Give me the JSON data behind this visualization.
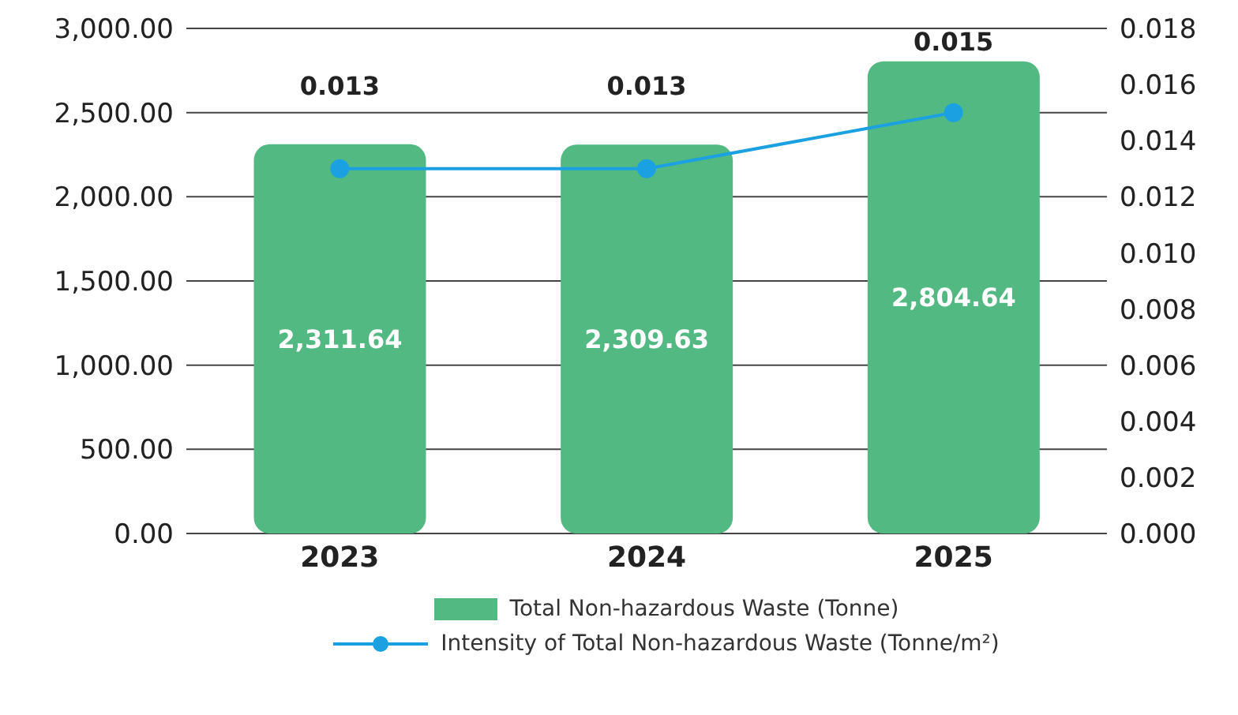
{
  "chart_data": {
    "type": "bar",
    "categories": [
      "2023",
      "2024",
      "2025"
    ],
    "series": [
      {
        "name": "Total Non-hazardous Waste (Tonne)",
        "color": "#52b983",
        "values": [
          2311.64,
          2309.63,
          2804.64
        ],
        "value_labels": [
          "2,311.64",
          "2,309.63",
          "2,804.64"
        ]
      },
      {
        "name": "Intensity of Total Non-hazardous Waste (Tonne/m²)",
        "type": "line",
        "axis": "y2",
        "color": "#1ba1e2",
        "values": [
          0.013,
          0.013,
          0.015
        ],
        "value_labels": [
          "0.013",
          "0.013",
          "0.015"
        ]
      }
    ],
    "ylim": [
      0,
      3000
    ],
    "yticks": [
      {
        "value": 0,
        "label": "0.00"
      },
      {
        "value": 500,
        "label": "500.00"
      },
      {
        "value": 1000,
        "label": "1,000.00"
      },
      {
        "value": 1500,
        "label": "1,500.00"
      },
      {
        "value": 2000,
        "label": "2,000.00"
      },
      {
        "value": 2500,
        "label": "2,500.00"
      },
      {
        "value": 3000,
        "label": "3,000.00"
      }
    ],
    "y2lim": [
      0,
      0.018
    ],
    "y2ticks": [
      {
        "value": 0,
        "label": "0.000"
      },
      {
        "value": 0.002,
        "label": "0.002"
      },
      {
        "value": 0.004,
        "label": "0.004"
      },
      {
        "value": 0.006,
        "label": "0.006"
      },
      {
        "value": 0.008,
        "label": "0.008"
      },
      {
        "value": 0.01,
        "label": "0.010"
      },
      {
        "value": 0.012,
        "label": "0.012"
      },
      {
        "value": 0.014,
        "label": "0.014"
      },
      {
        "value": 0.016,
        "label": "0.016"
      },
      {
        "value": 0.018,
        "label": "0.018"
      }
    ],
    "grid": "y",
    "legend": "bottom",
    "marker": "circle",
    "line_style": "solid"
  }
}
